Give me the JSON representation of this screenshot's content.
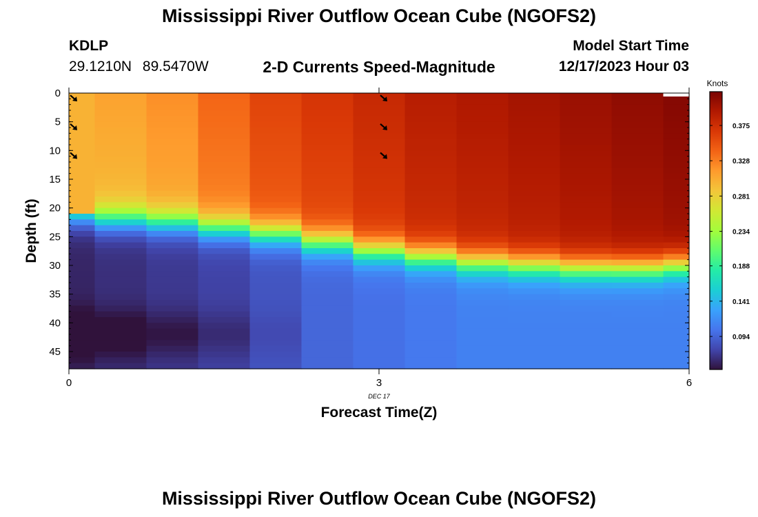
{
  "header": {
    "title": "Mississippi River Outflow Ocean Cube (NGOFS2)",
    "station": "KDLP",
    "latitude": "29.1210N",
    "longitude": "89.5470W",
    "subtitle": "2-D Currents Speed-Magnitude",
    "model_start_label": "Model Start Time",
    "model_start_value": "12/17/2023 Hour 03"
  },
  "footer": {
    "title": "Mississippi River Outflow Ocean Cube (NGOFS2)"
  },
  "chart_data": {
    "type": "heatmap",
    "xlabel": "Forecast Time(Z)",
    "ylabel": "Depth (ft)",
    "x_ticks": [
      "0",
      "3",
      "6"
    ],
    "x_date_label": "DEC 17",
    "y_ticks": [
      "0",
      "5",
      "10",
      "15",
      "20",
      "25",
      "30",
      "35",
      "40",
      "45"
    ],
    "xlim": [
      0,
      6
    ],
    "ylim": [
      0,
      48
    ],
    "y_inverted": true,
    "colorbar": {
      "label": "Knots",
      "ticks": [
        "0.375",
        "0.328",
        "0.281",
        "0.234",
        "0.188",
        "0.141",
        "0.094"
      ],
      "range": [
        0.05,
        0.42
      ],
      "colors": [
        "#30123b",
        "#4145ab",
        "#4675ed",
        "#39a2fc",
        "#1bcfd4",
        "#24eca6",
        "#61fc6c",
        "#a4fc3b",
        "#d1e834",
        "#f3c63a",
        "#fe9b2d",
        "#f36315",
        "#d93806",
        "#b11901",
        "#7a0403"
      ]
    },
    "times": [
      0,
      0.25,
      0.75,
      1.25,
      1.75,
      2.25,
      2.75,
      3.25,
      3.75,
      4.25,
      4.75,
      5.25,
      5.75
    ],
    "surface_speed": [
      0.3,
      0.31,
      0.32,
      0.34,
      0.36,
      0.37,
      0.38,
      0.39,
      0.395,
      0.4,
      0.405,
      0.41,
      0.415
    ],
    "pycnocline_depth_ft": [
      21,
      22,
      22.5,
      23.5,
      24.5,
      26,
      27.5,
      28.5,
      29.5,
      30,
      30.5,
      30.5,
      30
    ],
    "bottom_speed": [
      0.06,
      0.065,
      0.07,
      0.075,
      0.085,
      0.095,
      0.1,
      0.105,
      0.11,
      0.11,
      0.11,
      0.11,
      0.11
    ],
    "vectors": [
      {
        "time": 0,
        "depth": 0.5
      },
      {
        "time": 0,
        "depth": 5.5
      },
      {
        "time": 0,
        "depth": 10.5
      },
      {
        "time": 3,
        "depth": 0.5
      },
      {
        "time": 3,
        "depth": 5.5
      },
      {
        "time": 3,
        "depth": 10.5
      }
    ]
  }
}
